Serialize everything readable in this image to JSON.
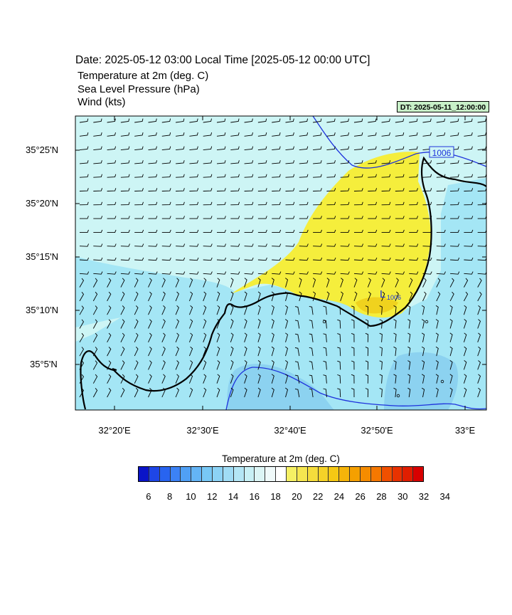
{
  "header": {
    "title": "Date: 2025-05-12  03:00 Local Time [2025-05-12  00:00 UTC]",
    "fields": [
      "Temperature at 2m   (deg. C)",
      "Sea Level Pressure   (hPa)",
      "Wind   (kts)"
    ],
    "dt_label": "DT: 2025-05-11_12:00:00"
  },
  "map": {
    "lat_labels": [
      "35°25'N",
      "35°20'N",
      "35°15'N",
      "35°10'N",
      "35°5'N"
    ],
    "lon_labels": [
      "32°20'E",
      "32°30'E",
      "32°40'E",
      "32°50'E",
      "33°E"
    ],
    "isobar_label": "1006",
    "low_marker": "L",
    "low_value": "1006",
    "colors": {
      "sea": "#cdf5f5",
      "cool": "#a4e6f5",
      "cooler": "#8cd2f0",
      "warm": "#f5ee3c",
      "warmer": "#f0d21e",
      "isobar": "#1e32dc",
      "coast": "#000000"
    }
  },
  "colorbar": {
    "title": "Temperature at 2m  (deg. C)",
    "labels": [
      "6",
      "8",
      "10",
      "12",
      "14",
      "16",
      "18",
      "20",
      "22",
      "24",
      "26",
      "28",
      "30",
      "32",
      "34"
    ],
    "colors": [
      "#0a14c8",
      "#1e46e6",
      "#2864f0",
      "#3c82f5",
      "#50a0f5",
      "#64b4f5",
      "#78c8f5",
      "#8cd2f5",
      "#a0dcf5",
      "#b4e6f5",
      "#c8f0f5",
      "#dcf5f5",
      "#f0fafa",
      "#ffffff",
      "#f5f064",
      "#f5e650",
      "#f5dc3c",
      "#f5d228",
      "#f5c814",
      "#f5b40a",
      "#f5a000",
      "#f58c00",
      "#f57800",
      "#f05000",
      "#e83200",
      "#e01e00",
      "#d80000"
    ]
  }
}
